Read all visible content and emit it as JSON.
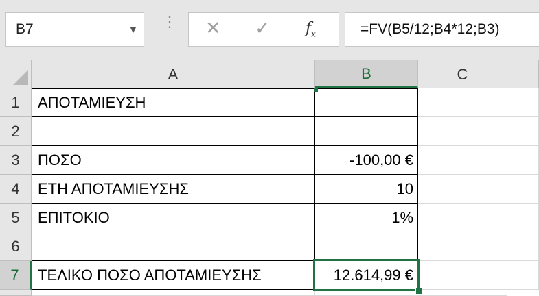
{
  "name_box": {
    "value": "B7"
  },
  "formula_bar": {
    "cancel_glyph": "✕",
    "enter_glyph": "✓",
    "fx_label": "f",
    "fx_sub": "x",
    "formula": "=FV(B5/12;B4*12;B3)"
  },
  "columns": [
    "A",
    "B",
    "C"
  ],
  "rows": [
    "1",
    "2",
    "3",
    "4",
    "5",
    "6",
    "7"
  ],
  "cells": {
    "A1": "ΑΠΟΤΑΜΙΕΥΣΗ",
    "A3": "ΠΟΣΟ",
    "B3": "-100,00 €",
    "A4": "ΕΤΗ ΑΠΟΤΑΜΙΕΥΣΗΣ",
    "B4": "10",
    "A5": "ΕΠΙΤΟΚΙΟ",
    "B5": "1%",
    "A7": "ΤΕΛΙΚΟ ΠΟΣΟ ΑΠΟΤΑΜΙΕΥΣΗΣ",
    "B7": "12.614,99 €"
  },
  "selection": {
    "cell": "B7",
    "column": "B",
    "row": "7"
  },
  "colors": {
    "accent": "#217346",
    "header_bg": "#e6e6e6",
    "selected_header_bg": "#d2d2d2"
  }
}
